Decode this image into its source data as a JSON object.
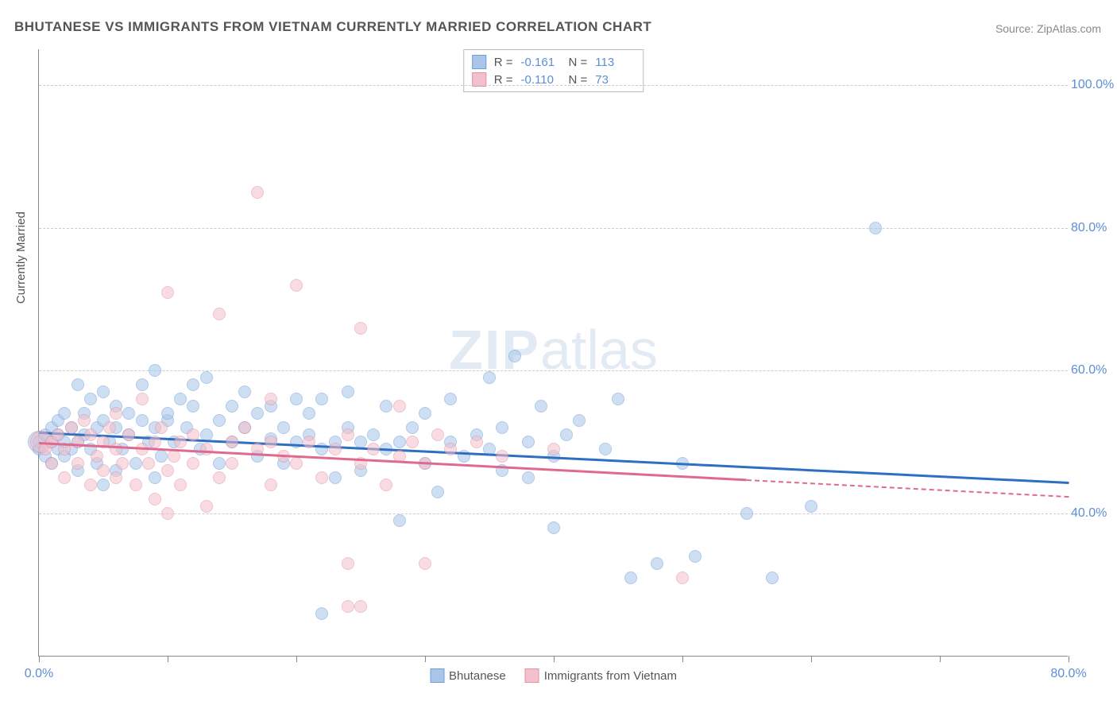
{
  "title": "BHUTANESE VS IMMIGRANTS FROM VIETNAM CURRENTLY MARRIED CORRELATION CHART",
  "source": "Source: ZipAtlas.com",
  "ylabel": "Currently Married",
  "watermark_bold": "ZIP",
  "watermark_rest": "atlas",
  "chart": {
    "type": "scatter",
    "xlim": [
      0,
      80
    ],
    "ylim": [
      20,
      105
    ],
    "xtick_positions": [
      0,
      10,
      20,
      30,
      40,
      50,
      60,
      70,
      80
    ],
    "xtick_labels": {
      "0": "0.0%",
      "80": "80.0%"
    },
    "ytick_positions": [
      40,
      60,
      80,
      100
    ],
    "ytick_labels": {
      "40": "40.0%",
      "60": "60.0%",
      "80": "80.0%",
      "100": "100.0%"
    },
    "background_color": "#ffffff",
    "grid_color": "#cccccc",
    "axis_color": "#888888",
    "tick_label_color": "#5b8fd6",
    "marker_radius": 8,
    "marker_opacity": 0.55,
    "large_marker_radius": 14
  },
  "series": [
    {
      "name": "Bhutanese",
      "fill": "#a9c6ea",
      "stroke": "#6f9ed6",
      "trend_color": "#2f6fc2",
      "R": "-0.161",
      "N": "113",
      "trend": {
        "x0": 0,
        "y0": 51.5,
        "x1": 80,
        "y1": 44.5,
        "solid_until": 80
      },
      "points": [
        [
          0,
          49
        ],
        [
          0,
          50
        ],
        [
          0.5,
          48
        ],
        [
          0.5,
          51
        ],
        [
          1,
          50
        ],
        [
          1,
          47
        ],
        [
          1,
          52
        ],
        [
          1.5,
          49
        ],
        [
          1.5,
          51
        ],
        [
          1.5,
          53
        ],
        [
          2,
          48
        ],
        [
          2,
          50
        ],
        [
          2,
          54
        ],
        [
          2.5,
          49
        ],
        [
          2.5,
          52
        ],
        [
          3,
          46
        ],
        [
          3,
          50
        ],
        [
          3,
          58
        ],
        [
          3.5,
          51
        ],
        [
          3.5,
          54
        ],
        [
          4,
          49
        ],
        [
          4,
          56
        ],
        [
          4.5,
          47
        ],
        [
          4.5,
          52
        ],
        [
          5,
          44
        ],
        [
          5,
          53
        ],
        [
          5,
          57
        ],
        [
          5.5,
          50
        ],
        [
          6,
          46
        ],
        [
          6,
          52
        ],
        [
          6,
          55
        ],
        [
          6.5,
          49
        ],
        [
          7,
          51
        ],
        [
          7,
          54
        ],
        [
          7.5,
          47
        ],
        [
          8,
          53
        ],
        [
          8,
          58
        ],
        [
          8.5,
          50
        ],
        [
          9,
          45
        ],
        [
          9,
          52
        ],
        [
          9,
          60
        ],
        [
          9.5,
          48
        ],
        [
          10,
          53
        ],
        [
          10,
          54
        ],
        [
          10.5,
          50
        ],
        [
          11,
          56
        ],
        [
          11.5,
          52
        ],
        [
          12,
          55
        ],
        [
          12,
          58
        ],
        [
          12.5,
          49
        ],
        [
          13,
          51
        ],
        [
          13,
          59
        ],
        [
          14,
          53
        ],
        [
          14,
          47
        ],
        [
          15,
          50
        ],
        [
          15,
          55
        ],
        [
          16,
          57
        ],
        [
          16,
          52
        ],
        [
          17,
          54
        ],
        [
          17,
          48
        ],
        [
          18,
          50.5
        ],
        [
          18,
          55
        ],
        [
          19,
          52
        ],
        [
          19,
          47
        ],
        [
          20,
          50
        ],
        [
          20,
          56
        ],
        [
          21,
          51
        ],
        [
          21,
          54
        ],
        [
          22,
          49
        ],
        [
          22,
          56
        ],
        [
          23,
          50
        ],
        [
          23,
          45
        ],
        [
          24,
          52
        ],
        [
          24,
          57
        ],
        [
          25,
          50
        ],
        [
          25,
          46
        ],
        [
          26,
          51
        ],
        [
          27,
          49
        ],
        [
          27,
          55
        ],
        [
          28,
          39
        ],
        [
          28,
          50
        ],
        [
          29,
          52
        ],
        [
          30,
          47
        ],
        [
          30,
          54
        ],
        [
          31,
          43
        ],
        [
          32,
          50
        ],
        [
          32,
          56
        ],
        [
          33,
          48
        ],
        [
          34,
          51
        ],
        [
          35,
          49
        ],
        [
          35,
          59
        ],
        [
          36,
          46
        ],
        [
          36,
          52
        ],
        [
          37,
          62
        ],
        [
          38,
          50
        ],
        [
          38,
          45
        ],
        [
          39,
          55
        ],
        [
          40,
          48
        ],
        [
          40,
          38
        ],
        [
          41,
          51
        ],
        [
          42,
          53
        ],
        [
          44,
          49
        ],
        [
          45,
          56
        ],
        [
          46,
          31
        ],
        [
          48,
          33
        ],
        [
          50,
          47
        ],
        [
          51,
          34
        ],
        [
          55,
          40
        ],
        [
          57,
          31
        ],
        [
          60,
          41
        ],
        [
          65,
          80
        ],
        [
          22,
          26
        ]
      ],
      "large_points": [
        [
          0,
          50
        ]
      ]
    },
    {
      "name": "Immigrants from Vietnam",
      "fill": "#f4c0cc",
      "stroke": "#e490a5",
      "trend_color": "#e06a8f",
      "R": "-0.110",
      "N": "73",
      "trend": {
        "x0": 0,
        "y0": 50,
        "x1": 80,
        "y1": 42.5,
        "solid_until": 55
      },
      "points": [
        [
          0.5,
          49
        ],
        [
          1,
          50
        ],
        [
          1,
          47
        ],
        [
          1.5,
          51
        ],
        [
          2,
          45
        ],
        [
          2,
          49
        ],
        [
          2.5,
          52
        ],
        [
          3,
          47
        ],
        [
          3,
          50
        ],
        [
          3.5,
          53
        ],
        [
          4,
          44
        ],
        [
          4,
          51
        ],
        [
          4.5,
          48
        ],
        [
          5,
          46
        ],
        [
          5,
          50
        ],
        [
          5.5,
          52
        ],
        [
          6,
          45
        ],
        [
          6,
          49
        ],
        [
          6.5,
          47
        ],
        [
          7,
          51
        ],
        [
          7.5,
          44
        ],
        [
          8,
          49
        ],
        [
          8,
          56
        ],
        [
          8.5,
          47
        ],
        [
          9,
          50
        ],
        [
          9,
          42
        ],
        [
          9.5,
          52
        ],
        [
          10,
          71
        ],
        [
          10,
          46
        ],
        [
          10.5,
          48
        ],
        [
          11,
          50
        ],
        [
          11,
          44
        ],
        [
          12,
          47
        ],
        [
          12,
          51
        ],
        [
          13,
          41
        ],
        [
          13,
          49
        ],
        [
          14,
          68
        ],
        [
          14,
          45
        ],
        [
          15,
          50
        ],
        [
          15,
          47
        ],
        [
          16,
          52
        ],
        [
          17,
          49
        ],
        [
          17,
          85
        ],
        [
          18,
          44
        ],
        [
          18,
          50
        ],
        [
          19,
          48
        ],
        [
          20,
          72
        ],
        [
          20,
          47
        ],
        [
          21,
          50
        ],
        [
          22,
          45
        ],
        [
          23,
          49
        ],
        [
          24,
          33
        ],
        [
          24,
          51
        ],
        [
          25,
          47
        ],
        [
          25,
          66
        ],
        [
          26,
          49
        ],
        [
          27,
          44
        ],
        [
          28,
          55
        ],
        [
          28,
          48
        ],
        [
          29,
          50
        ],
        [
          30,
          33
        ],
        [
          30,
          47
        ],
        [
          31,
          51
        ],
        [
          32,
          49
        ],
        [
          24,
          27
        ],
        [
          25,
          27
        ],
        [
          34,
          50
        ],
        [
          36,
          48
        ],
        [
          40,
          49
        ],
        [
          10,
          40
        ],
        [
          50,
          31
        ],
        [
          18,
          56
        ],
        [
          6,
          54
        ]
      ],
      "large_points": [
        [
          0.2,
          50
        ]
      ]
    }
  ],
  "bottom_legend": [
    {
      "label": "Bhutanese",
      "fill": "#a9c6ea",
      "stroke": "#6f9ed6"
    },
    {
      "label": "Immigrants from Vietnam",
      "fill": "#f4c0cc",
      "stroke": "#e490a5"
    }
  ]
}
